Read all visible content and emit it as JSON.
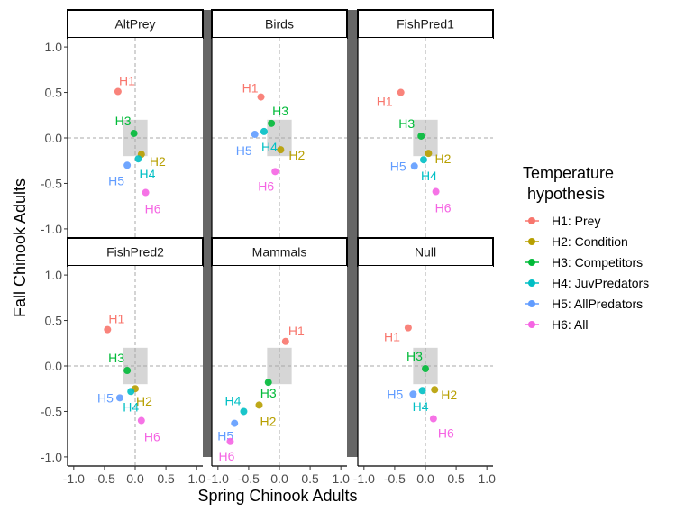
{
  "chart_data": {
    "type": "scatter",
    "xlabel": "Spring Chinook Adults",
    "ylabel": "Fall Chinook Adults",
    "xlim": [
      -1.1,
      1.1
    ],
    "ylim": [
      -1.1,
      1.1
    ],
    "x_ticks": [
      "-1.0",
      "-0.5",
      "0.0",
      "0.5",
      "1.0"
    ],
    "y_ticks": [
      "-1.0",
      "-0.5",
      "0.0",
      "0.5",
      "1.0"
    ],
    "legend": {
      "title_line1": "Temperature",
      "title_line2": " hypothesis",
      "placement": "right",
      "entries": [
        {
          "key": "H1",
          "label": "H1: Prey",
          "color": "#F8766D"
        },
        {
          "key": "H2",
          "label": "H2: Condition",
          "color": "#B79F00"
        },
        {
          "key": "H3",
          "label": "H3: Competitors",
          "color": "#00BA38"
        },
        {
          "key": "H4",
          "label": "H4: JuvPredators",
          "color": "#00BFC4"
        },
        {
          "key": "H5",
          "label": "H5: AllPredators",
          "color": "#619CFF"
        },
        {
          "key": "H6",
          "label": "H6: All",
          "color": "#F564E3"
        }
      ]
    },
    "reference_box": {
      "x": [
        -0.2,
        0.2
      ],
      "y": [
        -0.2,
        0.2
      ]
    },
    "panels": [
      {
        "name": "AltPrey",
        "points": [
          {
            "h": "H1",
            "x": -0.28,
            "y": 0.51
          },
          {
            "h": "H2",
            "x": 0.1,
            "y": -0.18
          },
          {
            "h": "H3",
            "x": -0.02,
            "y": 0.05
          },
          {
            "h": "H4",
            "x": 0.05,
            "y": -0.23
          },
          {
            "h": "H5",
            "x": -0.13,
            "y": -0.3
          },
          {
            "h": "H6",
            "x": 0.17,
            "y": -0.6
          }
        ]
      },
      {
        "name": "Birds",
        "points": [
          {
            "h": "H1",
            "x": -0.3,
            "y": 0.45
          },
          {
            "h": "H2",
            "x": 0.02,
            "y": -0.13
          },
          {
            "h": "H3",
            "x": -0.13,
            "y": 0.16
          },
          {
            "h": "H4",
            "x": -0.25,
            "y": 0.07
          },
          {
            "h": "H5",
            "x": -0.4,
            "y": 0.04
          },
          {
            "h": "H6",
            "x": -0.07,
            "y": -0.37
          }
        ]
      },
      {
        "name": "FishPred1",
        "points": [
          {
            "h": "H1",
            "x": -0.4,
            "y": 0.5
          },
          {
            "h": "H2",
            "x": 0.05,
            "y": -0.17
          },
          {
            "h": "H3",
            "x": -0.07,
            "y": 0.02
          },
          {
            "h": "H4",
            "x": -0.03,
            "y": -0.24
          },
          {
            "h": "H5",
            "x": -0.18,
            "y": -0.31
          },
          {
            "h": "H6",
            "x": 0.17,
            "y": -0.59
          }
        ]
      },
      {
        "name": "FishPred2",
        "points": [
          {
            "h": "H1",
            "x": -0.45,
            "y": 0.4
          },
          {
            "h": "H2",
            "x": 0.0,
            "y": -0.25
          },
          {
            "h": "H3",
            "x": -0.13,
            "y": -0.05
          },
          {
            "h": "H4",
            "x": -0.07,
            "y": -0.28
          },
          {
            "h": "H5",
            "x": -0.25,
            "y": -0.35
          },
          {
            "h": "H6",
            "x": 0.1,
            "y": -0.6
          }
        ]
      },
      {
        "name": "Mammals",
        "points": [
          {
            "h": "H1",
            "x": 0.1,
            "y": 0.27
          },
          {
            "h": "H2",
            "x": -0.33,
            "y": -0.43
          },
          {
            "h": "H3",
            "x": -0.18,
            "y": -0.18
          },
          {
            "h": "H4",
            "x": -0.58,
            "y": -0.5
          },
          {
            "h": "H5",
            "x": -0.73,
            "y": -0.63
          },
          {
            "h": "H6",
            "x": -0.8,
            "y": -0.83
          }
        ]
      },
      {
        "name": "Null",
        "points": [
          {
            "h": "H1",
            "x": -0.28,
            "y": 0.42
          },
          {
            "h": "H2",
            "x": 0.15,
            "y": -0.26
          },
          {
            "h": "H3",
            "x": 0.0,
            "y": -0.03
          },
          {
            "h": "H4",
            "x": -0.05,
            "y": -0.27
          },
          {
            "h": "H5",
            "x": -0.2,
            "y": -0.31
          },
          {
            "h": "H6",
            "x": 0.13,
            "y": -0.58
          }
        ]
      }
    ]
  }
}
